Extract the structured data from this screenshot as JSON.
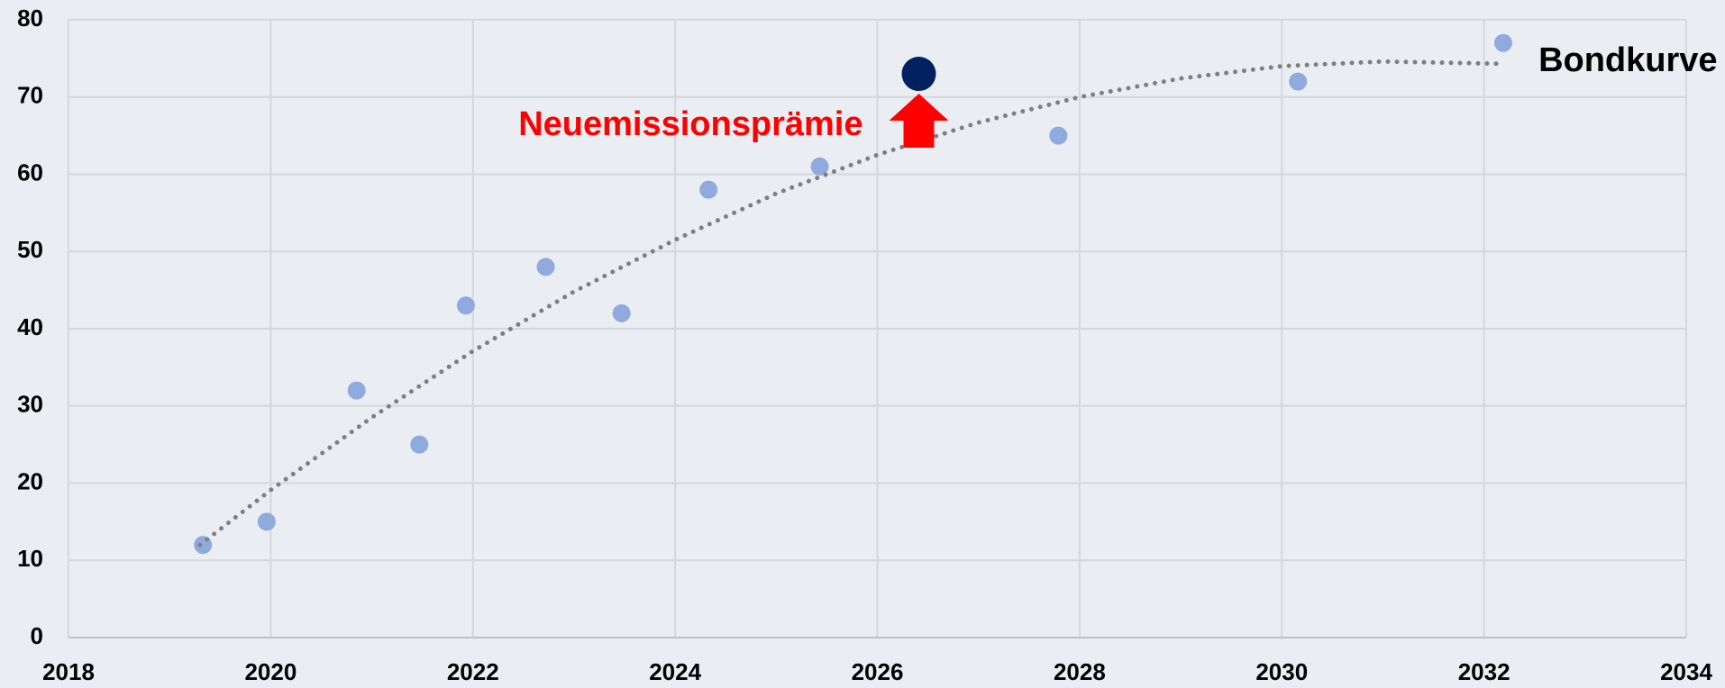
{
  "chart_data": {
    "type": "scatter",
    "xlim": [
      2018,
      2034
    ],
    "xticks": [
      2018,
      2020,
      2022,
      2024,
      2026,
      2028,
      2030,
      2032,
      2034
    ],
    "ylim": [
      0,
      80
    ],
    "yticks": [
      0,
      10,
      20,
      30,
      40,
      50,
      60,
      70,
      80
    ],
    "grid": true,
    "background": "#eaedf2",
    "series": [
      {
        "color": "#8faadc",
        "x": [
          2019.33,
          2019.96,
          2020.85,
          2021.47,
          2021.93,
          2022.72,
          2023.47,
          2024.33,
          2025.43,
          2027.79,
          2030.16,
          2032.19
        ],
        "values": [
          12,
          15,
          32,
          25,
          43,
          48,
          42,
          58,
          61,
          65,
          72,
          77
        ]
      },
      {
        "color": "#002060",
        "x": [
          2026.41
        ],
        "values": [
          73
        ]
      },
      {
        "name": "Bondkurve",
        "type": "line",
        "color": "#7f7f7f",
        "x": [
          2019.3,
          2020,
          2021,
          2022,
          2023,
          2024,
          2025,
          2026,
          2027,
          2028,
          2029,
          2030,
          2031,
          2032.2
        ],
        "values": [
          12,
          19.1,
          28.5,
          37.1,
          44.8,
          51.5,
          57.5,
          62.5,
          66.7,
          70.0,
          72.4,
          74.0,
          74.6,
          74.3
        ]
      }
    ],
    "annotations": [
      {
        "text": "Neuemissionsprämie",
        "color": "#ff0000"
      }
    ]
  }
}
